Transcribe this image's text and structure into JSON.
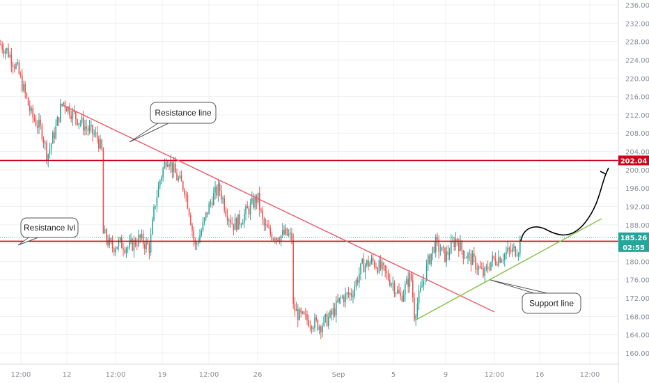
{
  "colors": {
    "up": "#26a69a",
    "down": "#ef5350",
    "resistance_level": "#d0021b",
    "trendline": "#e8606e",
    "support": "#8bc34a",
    "current_price": "#26a69a",
    "dotted_price": "#26a69a",
    "projection": "#000000",
    "grid": "#eef0f3"
  },
  "chart_data": {
    "type": "candlestick",
    "ylim": [
      158,
      238
    ],
    "y_ticks": [
      "236.00",
      "232.00",
      "228.00",
      "224.00",
      "220.00",
      "216.00",
      "212.00",
      "208.00",
      "204.00",
      "200.00",
      "196.00",
      "192.00",
      "188.00",
      "184.00",
      "180.00",
      "176.00",
      "172.00",
      "168.00",
      "164.00",
      "160.00"
    ],
    "x_ticks": [
      "12:00",
      "12",
      "12:00",
      "19",
      "12:00",
      "26",
      "Sep",
      "5",
      "9",
      "12:00",
      "16",
      "12:00"
    ],
    "close_path": [
      [
        0,
        227.5
      ],
      [
        10,
        226
      ],
      [
        25,
        222
      ],
      [
        45,
        212
      ],
      [
        60,
        208.5
      ],
      [
        68,
        203
      ],
      [
        80,
        209
      ],
      [
        90,
        215
      ],
      [
        100,
        213
      ],
      [
        112,
        211
      ],
      [
        125,
        209
      ],
      [
        140,
        207
      ],
      [
        148,
        203
      ],
      [
        149,
        186
      ],
      [
        160,
        183
      ],
      [
        172,
        184
      ],
      [
        185,
        183
      ],
      [
        200,
        185
      ],
      [
        215,
        183
      ],
      [
        222,
        192
      ],
      [
        230,
        198
      ],
      [
        240,
        203
      ],
      [
        255,
        198
      ],
      [
        265,
        196
      ],
      [
        272,
        191
      ],
      [
        280,
        183
      ],
      [
        290,
        187
      ],
      [
        298,
        191
      ],
      [
        305,
        194
      ],
      [
        315,
        196
      ],
      [
        325,
        191
      ],
      [
        335,
        188
      ],
      [
        345,
        189
      ],
      [
        360,
        192
      ],
      [
        370,
        194
      ],
      [
        378,
        188
      ],
      [
        388,
        186
      ],
      [
        400,
        185.5
      ],
      [
        410,
        186
      ],
      [
        420,
        185
      ],
      [
        421,
        170
      ],
      [
        430,
        168
      ],
      [
        445,
        167
      ],
      [
        460,
        166
      ],
      [
        475,
        168
      ],
      [
        490,
        172
      ],
      [
        505,
        173
      ],
      [
        520,
        179
      ],
      [
        535,
        180
      ],
      [
        550,
        178
      ],
      [
        565,
        175
      ],
      [
        575,
        172
      ],
      [
        590,
        177
      ],
      [
        595,
        168.5
      ],
      [
        605,
        174
      ],
      [
        615,
        180
      ],
      [
        625,
        184
      ],
      [
        640,
        181
      ],
      [
        655,
        185
      ],
      [
        665,
        182
      ],
      [
        680,
        180
      ],
      [
        695,
        177
      ],
      [
        705,
        180
      ],
      [
        718,
        181
      ],
      [
        730,
        182
      ],
      [
        740,
        182.5
      ],
      [
        745,
        183
      ],
      [
        748,
        185.26
      ]
    ],
    "levels": [
      {
        "price": 202.04,
        "label": "202.04",
        "kind": "resistance"
      },
      {
        "price": 184.4,
        "label": "184.40",
        "kind": "resistance"
      }
    ],
    "current_price": {
      "price": 185.26,
      "label": "185.26",
      "countdown": "02:55"
    },
    "annotations": [
      {
        "text": "Resistance line"
      },
      {
        "text": "Resistance lvl"
      },
      {
        "text": "Support line"
      }
    ]
  }
}
